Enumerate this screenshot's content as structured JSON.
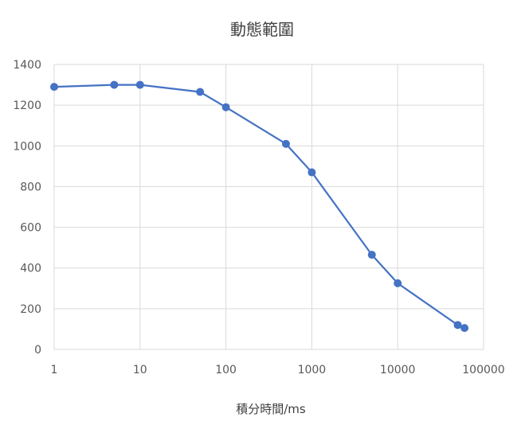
{
  "chart_data": {
    "type": "scatter",
    "title": "動態範圍",
    "xlabel": "積分時間/ms",
    "ylabel": "",
    "x_scale": "log",
    "xlim": [
      1,
      100000
    ],
    "ylim": [
      0,
      1400
    ],
    "x_ticks": [
      1,
      10,
      100,
      1000,
      10000,
      100000
    ],
    "x_tick_labels": [
      "1",
      "10",
      "100",
      "1000",
      "10000",
      "100000"
    ],
    "y_ticks": [
      0,
      200,
      400,
      600,
      800,
      1000,
      1200,
      1400
    ],
    "y_tick_labels": [
      "0",
      "200",
      "400",
      "600",
      "800",
      "1000",
      "1200",
      "1400"
    ],
    "grid": true,
    "legend": "none",
    "series": [
      {
        "color": "#4472c4",
        "x": [
          1,
          5,
          10,
          50,
          100,
          500,
          1000,
          5000,
          10000,
          50000,
          60000
        ],
        "y": [
          1290,
          1300,
          1300,
          1265,
          1190,
          1010,
          870,
          465,
          325,
          120,
          105
        ]
      }
    ]
  }
}
